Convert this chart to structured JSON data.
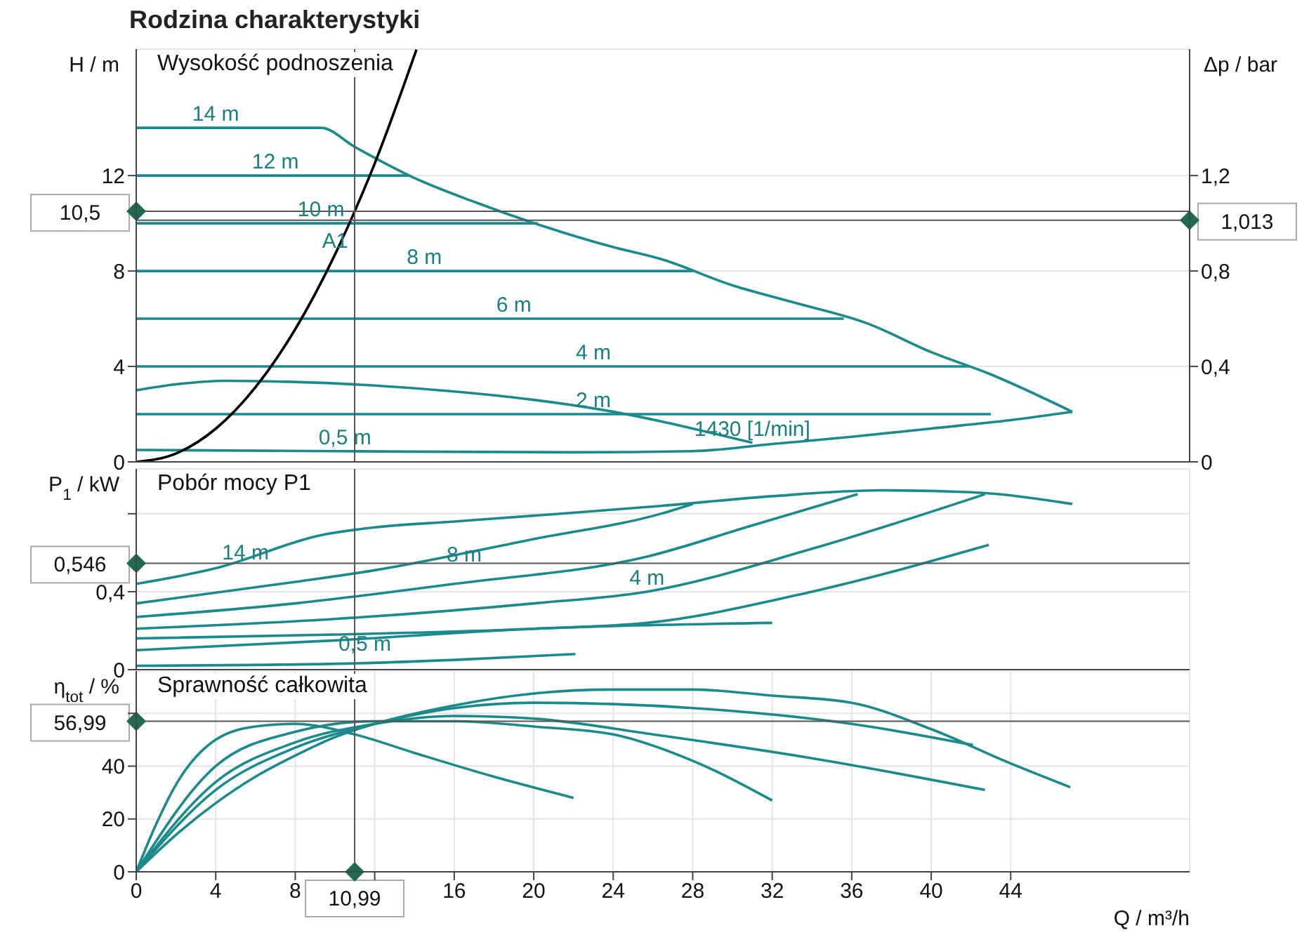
{
  "chart_data": [
    {
      "type": "line",
      "title": "Rodzina charakterystyki",
      "subtitle": "Wysokość podnoszenia",
      "ylabel": "H / m",
      "y2label": "Δp / bar",
      "xlim": [
        0,
        53
      ],
      "xticks": [
        0,
        4,
        8,
        16,
        20,
        24,
        28,
        32,
        36,
        40,
        44
      ],
      "ylim": [
        0,
        17.3
      ],
      "yticks": [
        0,
        4,
        8,
        12
      ],
      "y2lim": [
        0,
        1.73
      ],
      "y2ticks": [
        0,
        {
          "value": 0.4,
          "label": "0,4"
        },
        {
          "value": 0.8,
          "label": "0,8"
        },
        {
          "value": 1.2,
          "label": "1,2"
        }
      ],
      "tick_labels": "y",
      "grid": true,
      "series": [
        {
          "color": "#1b8a8c",
          "x": [
            0,
            9.3,
            11,
            14,
            17,
            20.4,
            24,
            26.4,
            30,
            33,
            36.8,
            40,
            42.9,
            47.1
          ],
          "values": [
            14,
            14,
            13.2,
            11.9,
            10.9,
            9.9,
            9.0,
            8.5,
            7.4,
            6.7,
            5.8,
            4.6,
            3.7,
            2.1
          ]
        },
        {
          "color": "#1b8a8c",
          "x": [
            0,
            10,
            22,
            28,
            32,
            36,
            40,
            44,
            47.1
          ],
          "values": [
            0.5,
            0.45,
            0.4,
            0.45,
            0.75,
            1.05,
            1.4,
            1.75,
            2.1
          ]
        },
        {
          "color": "#1b8a8c",
          "x": [
            0,
            13.7
          ],
          "values": [
            12,
            12
          ]
        },
        {
          "color": "#1b8a8c",
          "x": [
            0,
            20.2
          ],
          "values": [
            10,
            10
          ]
        },
        {
          "color": "#1b8a8c",
          "x": [
            0,
            28
          ],
          "values": [
            8,
            8
          ]
        },
        {
          "color": "#1b8a8c",
          "x": [
            0,
            35.6
          ],
          "values": [
            6,
            6
          ]
        },
        {
          "color": "#1b8a8c",
          "x": [
            0,
            41.9
          ],
          "values": [
            4,
            4
          ]
        },
        {
          "color": "#1b8a8c",
          "x": [
            0,
            43
          ],
          "values": [
            2,
            2
          ]
        },
        {
          "color": "#1b8a8c",
          "x": [
            0,
            2,
            4.5,
            8,
            12,
            16,
            20,
            24,
            26.4,
            29,
            31
          ],
          "values": [
            3.0,
            3.25,
            3.4,
            3.35,
            3.2,
            2.95,
            2.6,
            2.1,
            1.7,
            1.2,
            0.8
          ]
        },
        {
          "color": "#000000",
          "x": [
            0,
            2,
            4,
            6,
            8,
            10,
            10.99,
            12,
            14.1
          ],
          "values": [
            0,
            0.35,
            1.39,
            3.13,
            5.56,
            8.69,
            10.5,
            12.51,
            17.28
          ]
        }
      ],
      "ref_lines": [
        {
          "axis": "x",
          "value": 10.99,
          "color": "#555555"
        },
        {
          "axis": "y",
          "value": 10.5,
          "label": "10,5",
          "color": "#555555"
        },
        {
          "axis": "y2",
          "value": 1.013,
          "label": "1,013",
          "color": "#555555"
        }
      ],
      "annotations": [
        {
          "text": "14 m",
          "x": 4,
          "y": 14
        },
        {
          "text": "12 m",
          "x": 7,
          "y": 12
        },
        {
          "text": "10 m",
          "x": 9.3,
          "y": 10
        },
        {
          "text": "8 m",
          "x": 14.5,
          "y": 8
        },
        {
          "text": "6 m",
          "x": 19,
          "y": 6
        },
        {
          "text": "4 m",
          "x": 23,
          "y": 4
        },
        {
          "text": "2 m",
          "x": 23,
          "y": 2
        },
        {
          "text": "0,5 m",
          "x": 10.5,
          "y": 0.45
        },
        {
          "text": "1430 [1/min]",
          "x": 31,
          "y": 0.8
        },
        {
          "text": "A1",
          "x": 10,
          "y": 8.69
        }
      ]
    },
    {
      "type": "line",
      "subtitle": "Pobór mocy P1",
      "ylabel": "P$_{1}$ / kW",
      "xlim": [
        0,
        53
      ],
      "xticks": [
        0,
        4,
        8,
        16,
        20,
        24,
        28,
        32,
        36,
        40,
        44
      ],
      "ylim": [
        0,
        1.03
      ],
      "yticks": [
        0,
        {
          "value": 0.4,
          "label": "0,4"
        },
        {
          "value": 0.8,
          "label": null
        }
      ],
      "tick_labels": "y",
      "grid": true,
      "series": [
        {
          "color": "#1b8a8c",
          "x": [
            0,
            4,
            9.3,
            12,
            16,
            20,
            26.4,
            32,
            37.5,
            42,
            47.1
          ],
          "values": [
            0.44,
            0.52,
            0.69,
            0.73,
            0.76,
            0.79,
            0.84,
            0.89,
            0.92,
            0.91,
            0.85
          ]
        },
        {
          "color": "#1b8a8c",
          "x": [
            0,
            8,
            12,
            20,
            26.4,
            28
          ],
          "values": [
            0.34,
            0.45,
            0.51,
            0.67,
            0.8,
            0.85
          ]
        },
        {
          "color": "#1b8a8c",
          "x": [
            0,
            8,
            16,
            25.7,
            31,
            36.3
          ],
          "values": [
            0.27,
            0.34,
            0.44,
            0.58,
            0.74,
            0.9
          ]
        },
        {
          "color": "#1b8a8c",
          "x": [
            0,
            10,
            20,
            25.7,
            34,
            42.7
          ],
          "values": [
            0.21,
            0.26,
            0.34,
            0.4,
            0.62,
            0.9
          ]
        },
        {
          "color": "#1b8a8c",
          "x": [
            0,
            10,
            20,
            25.7,
            34,
            42.9
          ],
          "values": [
            0.16,
            0.18,
            0.21,
            0.24,
            0.4,
            0.64
          ]
        },
        {
          "color": "#1b8a8c",
          "x": [
            0,
            10,
            20,
            32
          ],
          "values": [
            0.1,
            0.15,
            0.21,
            0.24
          ]
        },
        {
          "color": "#1b8a8c",
          "x": [
            0,
            10,
            16,
            22.1
          ],
          "values": [
            0.02,
            0.03,
            0.05,
            0.08
          ]
        }
      ],
      "ref_lines": [
        {
          "axis": "x",
          "value": 10.99,
          "color": "#555555"
        },
        {
          "axis": "y",
          "value": 0.546,
          "label": "0,546",
          "color": "#555555"
        }
      ],
      "annotations": [
        {
          "text": "14 m",
          "x": 5.5,
          "y": 0.53
        },
        {
          "text": "8 m",
          "x": 16.5,
          "y": 0.52
        },
        {
          "text": "4 m",
          "x": 25.7,
          "y": 0.4
        },
        {
          "text": "0,5 m",
          "x": 11.5,
          "y": 0.06
        }
      ]
    },
    {
      "type": "line",
      "subtitle": "Sprawność całkowita",
      "ylabel": "η$_{tot}$ / %",
      "xlabel": "Q / m³/h",
      "xlim": [
        0,
        53
      ],
      "xticks": [
        0,
        4,
        8,
        {
          "value": 12,
          "label": null
        },
        16,
        20,
        24,
        28,
        32,
        36,
        40,
        44
      ],
      "ylim": [
        0,
        76
      ],
      "yticks": [
        0,
        20,
        40,
        {
          "value": 60,
          "label": null
        }
      ],
      "grid": true,
      "series": [
        {
          "color": "#1b8a8c",
          "x": [
            0,
            2,
            4,
            6,
            8,
            10,
            12,
            16,
            20,
            24,
            28,
            32,
            36,
            40,
            44,
            47
          ],
          "values": [
            0,
            14,
            26,
            36,
            44,
            51,
            56,
            63,
            67.5,
            69,
            69,
            66.7,
            64,
            54,
            41,
            32
          ]
        },
        {
          "color": "#1b8a8c",
          "x": [
            0,
            1,
            2,
            4,
            6,
            8,
            11,
            14,
            18,
            22
          ],
          "values": [
            0,
            18,
            33,
            50,
            55,
            56,
            52,
            45,
            36,
            28
          ]
        },
        {
          "color": "#1b8a8c",
          "x": [
            0,
            4,
            8,
            12,
            16,
            20,
            24,
            28,
            32
          ],
          "values": [
            0,
            40,
            53,
            57,
            57,
            55,
            52,
            42,
            27
          ]
        },
        {
          "color": "#1b8a8c",
          "x": [
            0,
            4,
            8,
            12,
            16,
            20,
            26,
            34,
            42.7
          ],
          "values": [
            0,
            34,
            49,
            56,
            59,
            58,
            52,
            43,
            31
          ]
        },
        {
          "color": "#1b8a8c",
          "x": [
            0,
            4,
            8,
            12,
            16,
            20,
            28,
            36,
            42.1
          ],
          "values": [
            0,
            31,
            47,
            56,
            62,
            64,
            62,
            56,
            48
          ]
        }
      ],
      "ref_lines": [
        {
          "axis": "x",
          "value": 10.99,
          "label": "10,99",
          "color": "#555555"
        },
        {
          "axis": "y",
          "value": 56.99,
          "label": "56,99",
          "color": "#555555"
        }
      ]
    }
  ]
}
